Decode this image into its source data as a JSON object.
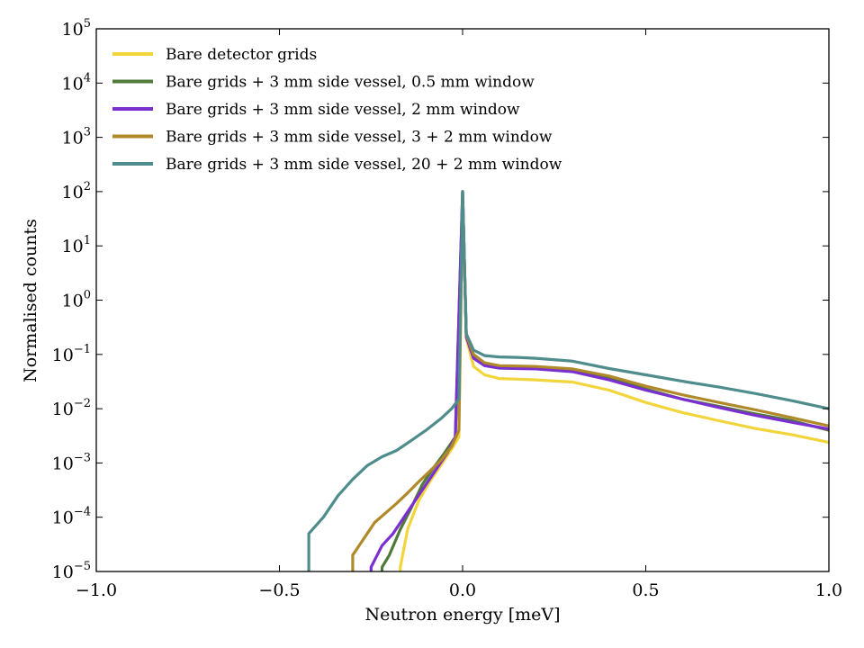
{
  "chart_data": {
    "type": "line",
    "title": "",
    "xlabel": "Neutron energy [meV]",
    "ylabel": "Normalised counts",
    "xlim": [
      -1.0,
      1.0
    ],
    "ylim_log10": [
      -5,
      5
    ],
    "yscale": "log",
    "x_ticks": [
      -1.0,
      -0.5,
      0.0,
      0.5,
      1.0
    ],
    "x_tick_labels": [
      "−1.0",
      "−0.5",
      "0.0",
      "0.5",
      "1.0"
    ],
    "y_tick_exponents": [
      "−5",
      "−4",
      "−3",
      "−2",
      "−1",
      "0",
      "1",
      "2",
      "3",
      "4",
      "5"
    ],
    "y_tick_base": "10",
    "legend_position": "top-left",
    "series": [
      {
        "name": "Bare detector grids",
        "color": "#f2d43b",
        "x": [
          -0.17,
          -0.15,
          -0.12,
          -0.09,
          -0.06,
          -0.03,
          -0.01,
          0.0,
          0.01,
          0.03,
          0.06,
          0.1,
          0.15,
          0.2,
          0.3,
          0.4,
          0.5,
          0.6,
          0.7,
          0.8,
          0.9,
          1.0
        ],
        "y": [
          1.2e-05,
          6e-05,
          0.0002,
          0.00045,
          0.0009,
          0.0018,
          0.003,
          100,
          0.2,
          0.06,
          0.042,
          0.036,
          0.035,
          0.034,
          0.031,
          0.022,
          0.013,
          0.0085,
          0.006,
          0.0043,
          0.0033,
          0.0024
        ]
      },
      {
        "name": "Bare grids + 3 mm side vessel, 0.5 mm window",
        "color": "#4f7a3a",
        "x": [
          -0.22,
          -0.2,
          -0.17,
          -0.14,
          -0.11,
          -0.08,
          -0.05,
          -0.02,
          0.0,
          0.01,
          0.03,
          0.06,
          0.1,
          0.15,
          0.2,
          0.3,
          0.4,
          0.5,
          0.6,
          0.7,
          0.8,
          0.9,
          1.0
        ],
        "y": [
          1.2e-05,
          2e-05,
          6e-05,
          0.00015,
          0.0004,
          0.0008,
          0.0015,
          0.003,
          100,
          0.22,
          0.09,
          0.065,
          0.058,
          0.057,
          0.055,
          0.05,
          0.036,
          0.023,
          0.015,
          0.011,
          0.008,
          0.006,
          0.004
        ]
      },
      {
        "name": "Bare grids + 3 mm side vessel, 2 mm window",
        "color": "#7b2fd0",
        "x": [
          -0.25,
          -0.22,
          -0.19,
          -0.16,
          -0.13,
          -0.1,
          -0.07,
          -0.04,
          -0.02,
          0.0,
          0.01,
          0.03,
          0.06,
          0.1,
          0.15,
          0.2,
          0.3,
          0.4,
          0.5,
          0.6,
          0.7,
          0.8,
          0.9,
          1.0
        ],
        "y": [
          1.2e-05,
          3e-05,
          5e-05,
          0.0001,
          0.0002,
          0.0004,
          0.0008,
          0.0016,
          0.003,
          100,
          0.21,
          0.085,
          0.062,
          0.056,
          0.055,
          0.054,
          0.048,
          0.034,
          0.022,
          0.015,
          0.0105,
          0.0075,
          0.0056,
          0.0042
        ]
      },
      {
        "name": "Bare grids + 3 mm side vessel, 3 + 2 mm window",
        "color": "#b0892a",
        "x": [
          -0.3,
          -0.27,
          -0.24,
          -0.21,
          -0.18,
          -0.15,
          -0.12,
          -0.09,
          -0.06,
          -0.03,
          -0.01,
          0.0,
          0.01,
          0.03,
          0.06,
          0.1,
          0.15,
          0.2,
          0.3,
          0.4,
          0.5,
          0.6,
          0.7,
          0.8,
          0.9,
          1.0
        ],
        "y": [
          2e-05,
          4e-05,
          8e-05,
          0.00012,
          0.00018,
          0.00028,
          0.00045,
          0.0007,
          0.0011,
          0.002,
          0.004,
          100,
          0.23,
          0.1,
          0.07,
          0.062,
          0.061,
          0.06,
          0.054,
          0.04,
          0.026,
          0.018,
          0.013,
          0.0095,
          0.0068,
          0.0048
        ]
      },
      {
        "name": "Bare grids + 3 mm side vessel, 20 + 2 mm window",
        "color": "#4e8d8c",
        "x": [
          -0.42,
          -0.38,
          -0.34,
          -0.3,
          -0.26,
          -0.22,
          -0.18,
          -0.14,
          -0.1,
          -0.06,
          -0.03,
          -0.01,
          0.0,
          0.01,
          0.03,
          0.06,
          0.1,
          0.15,
          0.2,
          0.3,
          0.4,
          0.5,
          0.6,
          0.7,
          0.8,
          0.9,
          1.0
        ],
        "y": [
          5e-05,
          0.0001,
          0.00025,
          0.0005,
          0.0009,
          0.0013,
          0.0017,
          0.0026,
          0.004,
          0.0065,
          0.01,
          0.015,
          100,
          0.24,
          0.12,
          0.095,
          0.09,
          0.088,
          0.085,
          0.075,
          0.055,
          0.042,
          0.032,
          0.025,
          0.019,
          0.014,
          0.01
        ]
      }
    ]
  }
}
